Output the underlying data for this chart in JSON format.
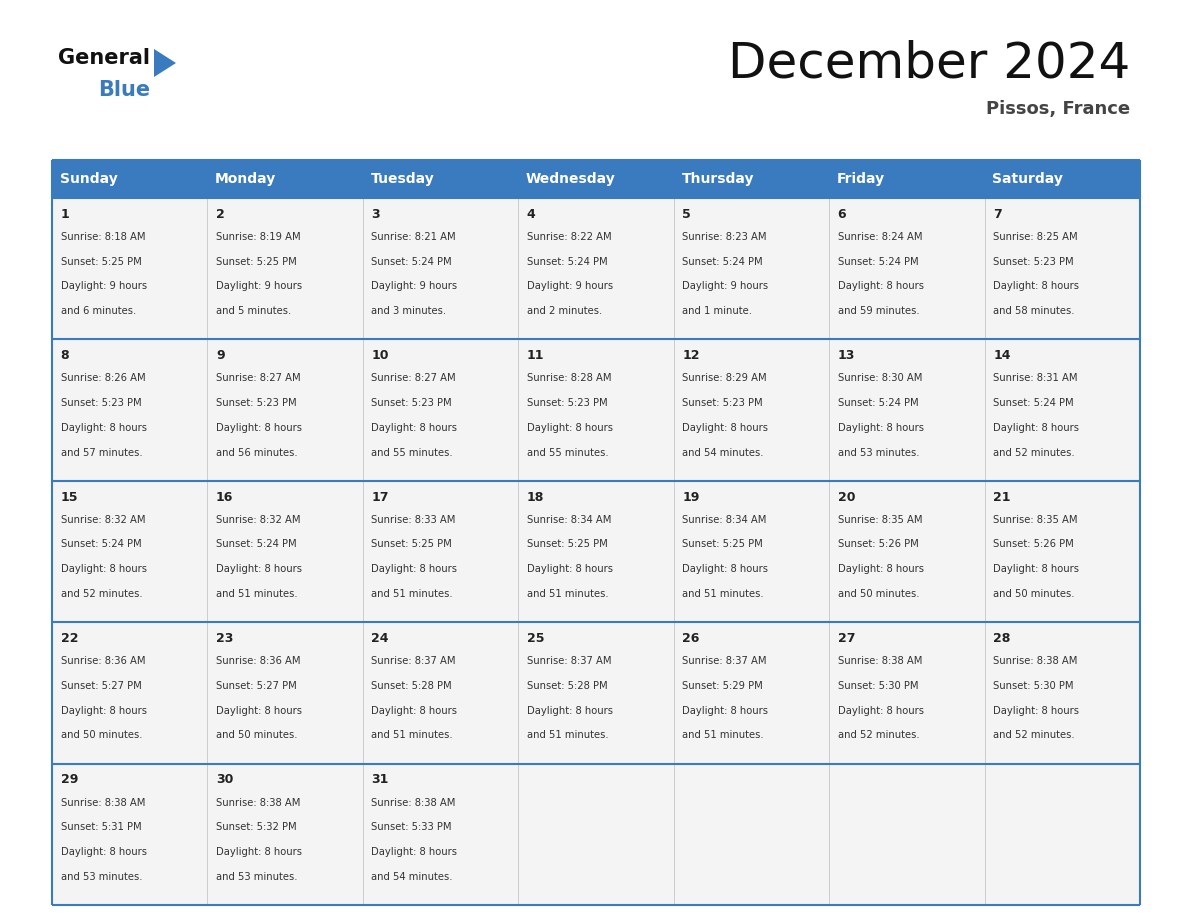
{
  "title": "December 2024",
  "subtitle": "Pissos, France",
  "header_color": "#3a7abf",
  "header_text_color": "#ffffff",
  "day_names": [
    "Sunday",
    "Monday",
    "Tuesday",
    "Wednesday",
    "Thursday",
    "Friday",
    "Saturday"
  ],
  "cell_bg_color": "#f4f4f4",
  "border_color": "#3a7abf",
  "row_sep_color": "#3a7abf",
  "col_sep_color": "#cccccc",
  "days": [
    {
      "day": 1,
      "col": 0,
      "row": 0,
      "sunrise": "8:18 AM",
      "sunset": "5:25 PM",
      "daylight_hours": 9,
      "daylight_minutes": 6
    },
    {
      "day": 2,
      "col": 1,
      "row": 0,
      "sunrise": "8:19 AM",
      "sunset": "5:25 PM",
      "daylight_hours": 9,
      "daylight_minutes": 5
    },
    {
      "day": 3,
      "col": 2,
      "row": 0,
      "sunrise": "8:21 AM",
      "sunset": "5:24 PM",
      "daylight_hours": 9,
      "daylight_minutes": 3
    },
    {
      "day": 4,
      "col": 3,
      "row": 0,
      "sunrise": "8:22 AM",
      "sunset": "5:24 PM",
      "daylight_hours": 9,
      "daylight_minutes": 2
    },
    {
      "day": 5,
      "col": 4,
      "row": 0,
      "sunrise": "8:23 AM",
      "sunset": "5:24 PM",
      "daylight_hours": 9,
      "daylight_minutes": 1
    },
    {
      "day": 6,
      "col": 5,
      "row": 0,
      "sunrise": "8:24 AM",
      "sunset": "5:24 PM",
      "daylight_hours": 8,
      "daylight_minutes": 59
    },
    {
      "day": 7,
      "col": 6,
      "row": 0,
      "sunrise": "8:25 AM",
      "sunset": "5:23 PM",
      "daylight_hours": 8,
      "daylight_minutes": 58
    },
    {
      "day": 8,
      "col": 0,
      "row": 1,
      "sunrise": "8:26 AM",
      "sunset": "5:23 PM",
      "daylight_hours": 8,
      "daylight_minutes": 57
    },
    {
      "day": 9,
      "col": 1,
      "row": 1,
      "sunrise": "8:27 AM",
      "sunset": "5:23 PM",
      "daylight_hours": 8,
      "daylight_minutes": 56
    },
    {
      "day": 10,
      "col": 2,
      "row": 1,
      "sunrise": "8:27 AM",
      "sunset": "5:23 PM",
      "daylight_hours": 8,
      "daylight_minutes": 55
    },
    {
      "day": 11,
      "col": 3,
      "row": 1,
      "sunrise": "8:28 AM",
      "sunset": "5:23 PM",
      "daylight_hours": 8,
      "daylight_minutes": 55
    },
    {
      "day": 12,
      "col": 4,
      "row": 1,
      "sunrise": "8:29 AM",
      "sunset": "5:23 PM",
      "daylight_hours": 8,
      "daylight_minutes": 54
    },
    {
      "day": 13,
      "col": 5,
      "row": 1,
      "sunrise": "8:30 AM",
      "sunset": "5:24 PM",
      "daylight_hours": 8,
      "daylight_minutes": 53
    },
    {
      "day": 14,
      "col": 6,
      "row": 1,
      "sunrise": "8:31 AM",
      "sunset": "5:24 PM",
      "daylight_hours": 8,
      "daylight_minutes": 52
    },
    {
      "day": 15,
      "col": 0,
      "row": 2,
      "sunrise": "8:32 AM",
      "sunset": "5:24 PM",
      "daylight_hours": 8,
      "daylight_minutes": 52
    },
    {
      "day": 16,
      "col": 1,
      "row": 2,
      "sunrise": "8:32 AM",
      "sunset": "5:24 PM",
      "daylight_hours": 8,
      "daylight_minutes": 51
    },
    {
      "day": 17,
      "col": 2,
      "row": 2,
      "sunrise": "8:33 AM",
      "sunset": "5:25 PM",
      "daylight_hours": 8,
      "daylight_minutes": 51
    },
    {
      "day": 18,
      "col": 3,
      "row": 2,
      "sunrise": "8:34 AM",
      "sunset": "5:25 PM",
      "daylight_hours": 8,
      "daylight_minutes": 51
    },
    {
      "day": 19,
      "col": 4,
      "row": 2,
      "sunrise": "8:34 AM",
      "sunset": "5:25 PM",
      "daylight_hours": 8,
      "daylight_minutes": 51
    },
    {
      "day": 20,
      "col": 5,
      "row": 2,
      "sunrise": "8:35 AM",
      "sunset": "5:26 PM",
      "daylight_hours": 8,
      "daylight_minutes": 50
    },
    {
      "day": 21,
      "col": 6,
      "row": 2,
      "sunrise": "8:35 AM",
      "sunset": "5:26 PM",
      "daylight_hours": 8,
      "daylight_minutes": 50
    },
    {
      "day": 22,
      "col": 0,
      "row": 3,
      "sunrise": "8:36 AM",
      "sunset": "5:27 PM",
      "daylight_hours": 8,
      "daylight_minutes": 50
    },
    {
      "day": 23,
      "col": 1,
      "row": 3,
      "sunrise": "8:36 AM",
      "sunset": "5:27 PM",
      "daylight_hours": 8,
      "daylight_minutes": 50
    },
    {
      "day": 24,
      "col": 2,
      "row": 3,
      "sunrise": "8:37 AM",
      "sunset": "5:28 PM",
      "daylight_hours": 8,
      "daylight_minutes": 51
    },
    {
      "day": 25,
      "col": 3,
      "row": 3,
      "sunrise": "8:37 AM",
      "sunset": "5:28 PM",
      "daylight_hours": 8,
      "daylight_minutes": 51
    },
    {
      "day": 26,
      "col": 4,
      "row": 3,
      "sunrise": "8:37 AM",
      "sunset": "5:29 PM",
      "daylight_hours": 8,
      "daylight_minutes": 51
    },
    {
      "day": 27,
      "col": 5,
      "row": 3,
      "sunrise": "8:38 AM",
      "sunset": "5:30 PM",
      "daylight_hours": 8,
      "daylight_minutes": 52
    },
    {
      "day": 28,
      "col": 6,
      "row": 3,
      "sunrise": "8:38 AM",
      "sunset": "5:30 PM",
      "daylight_hours": 8,
      "daylight_minutes": 52
    },
    {
      "day": 29,
      "col": 0,
      "row": 4,
      "sunrise": "8:38 AM",
      "sunset": "5:31 PM",
      "daylight_hours": 8,
      "daylight_minutes": 53
    },
    {
      "day": 30,
      "col": 1,
      "row": 4,
      "sunrise": "8:38 AM",
      "sunset": "5:32 PM",
      "daylight_hours": 8,
      "daylight_minutes": 53
    },
    {
      "day": 31,
      "col": 2,
      "row": 4,
      "sunrise": "8:38 AM",
      "sunset": "5:33 PM",
      "daylight_hours": 8,
      "daylight_minutes": 54
    }
  ],
  "num_rows": 5,
  "logo_color_general": "#111111",
  "logo_color_blue": "#3a7abf",
  "logo_triangle_color": "#3a7abf"
}
